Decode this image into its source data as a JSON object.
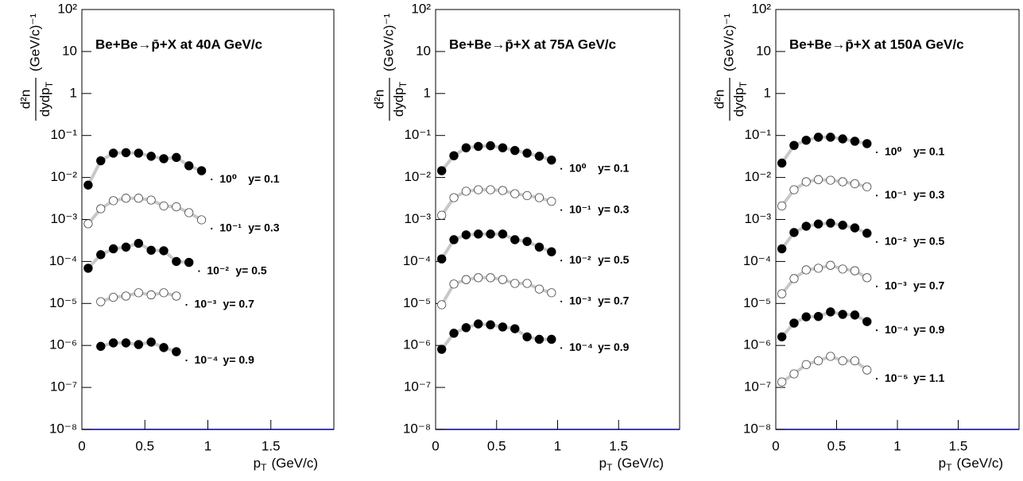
{
  "chart_data": [
    {
      "type": "line",
      "log_y": true,
      "title": "Be+Be→p̄+X at 40A GeV/c",
      "ylabel_numerator": "d²n",
      "ylabel_denominator": "dydp",
      "ylabel_denominator_sub": "T",
      "ylabel_unit": "(GeV/c)⁻¹",
      "xlabel": "p",
      "xlabel_sub": "T",
      "xlabel_unit": "(GeV/c)",
      "xlim": [
        0,
        2
      ],
      "ylim": [
        1e-08,
        100
      ],
      "xticks": [
        0,
        0.5,
        1,
        1.5
      ],
      "yticks": [
        {
          "value": 1e-08,
          "label": "10⁻⁸"
        },
        {
          "value": 1e-07,
          "label": "10⁻⁷"
        },
        {
          "value": 1e-06,
          "label": "10⁻⁶"
        },
        {
          "value": 1e-05,
          "label": "10⁻⁵"
        },
        {
          "value": 0.0001,
          "label": "10⁻⁴"
        },
        {
          "value": 0.001,
          "label": "10⁻³"
        },
        {
          "value": 0.01,
          "label": "10⁻²"
        },
        {
          "value": 0.1,
          "label": "10⁻¹"
        },
        1,
        10,
        {
          "value": 100,
          "label": "10²"
        }
      ],
      "series": [
        {
          "name": "y= 0.1",
          "scale_label": "10⁰",
          "marker": "filled",
          "color": "#000000",
          "x": [
            0.05,
            0.15,
            0.25,
            0.35,
            0.45,
            0.55,
            0.65,
            0.75,
            0.85,
            0.95
          ],
          "values": [
            0.0066,
            0.025,
            0.038,
            0.039,
            0.038,
            0.032,
            0.028,
            0.03,
            0.019,
            0.0145
          ]
        },
        {
          "name": "y= 0.3",
          "scale_label": "10⁻¹",
          "marker": "open",
          "color": "#000000",
          "x": [
            0.05,
            0.15,
            0.25,
            0.35,
            0.45,
            0.55,
            0.65,
            0.75,
            0.85,
            0.95
          ],
          "values": [
            0.00079,
            0.0018,
            0.0028,
            0.0032,
            0.0032,
            0.0029,
            0.0021,
            0.002,
            0.00145,
            0.00098
          ]
        },
        {
          "name": "y= 0.5",
          "scale_label": "10⁻²",
          "marker": "filled",
          "color": "#000000",
          "x": [
            0.05,
            0.15,
            0.25,
            0.35,
            0.45,
            0.55,
            0.65,
            0.75,
            0.85
          ],
          "values": [
            6.9e-05,
            0.000145,
            0.0002,
            0.00022,
            0.00027,
            0.000185,
            0.00018,
            0.0001,
            9.5e-05
          ]
        },
        {
          "name": "y= 0.7",
          "scale_label": "10⁻³",
          "marker": "open",
          "color": "#000000",
          "x": [
            0.15,
            0.25,
            0.35,
            0.45,
            0.55,
            0.65,
            0.75
          ],
          "values": [
            1.1e-05,
            1.4e-05,
            1.5e-05,
            1.8e-05,
            1.6e-05,
            1.8e-05,
            1.5e-05
          ]
        },
        {
          "name": "y= 0.9",
          "scale_label": "10⁻⁴",
          "marker": "filled",
          "color": "#000000",
          "x": [
            0.15,
            0.25,
            0.35,
            0.45,
            0.55,
            0.65,
            0.75
          ],
          "values": [
            9.5e-07,
            1.15e-06,
            1.15e-06,
            1.05e-06,
            1.2e-06,
            8.9e-07,
            7.1e-07
          ]
        }
      ]
    },
    {
      "type": "line",
      "log_y": true,
      "title": "Be+Be→p̄+X at 75A GeV/c",
      "ylabel_numerator": "d²n",
      "ylabel_denominator": "dydp",
      "ylabel_denominator_sub": "T",
      "ylabel_unit": "(GeV/c)⁻¹",
      "xlabel": "p",
      "xlabel_sub": "T",
      "xlabel_unit": "(GeV/c)",
      "xlim": [
        0,
        2
      ],
      "ylim": [
        1e-08,
        100
      ],
      "xticks": [
        0,
        0.5,
        1,
        1.5
      ],
      "yticks": [
        {
          "value": 1e-08,
          "label": "10⁻⁸"
        },
        {
          "value": 1e-07,
          "label": "10⁻⁷"
        },
        {
          "value": 1e-06,
          "label": "10⁻⁶"
        },
        {
          "value": 1e-05,
          "label": "10⁻⁵"
        },
        {
          "value": 0.0001,
          "label": "10⁻⁴"
        },
        {
          "value": 0.001,
          "label": "10⁻³"
        },
        {
          "value": 0.01,
          "label": "10⁻²"
        },
        {
          "value": 0.1,
          "label": "10⁻¹"
        },
        1,
        10,
        {
          "value": 100,
          "label": "10²"
        }
      ],
      "series": [
        {
          "name": "y= 0.1",
          "scale_label": "10⁰",
          "marker": "filled",
          "color": "#000000",
          "x": [
            0.05,
            0.15,
            0.25,
            0.35,
            0.45,
            0.55,
            0.65,
            0.75,
            0.85,
            0.95
          ],
          "values": [
            0.0145,
            0.033,
            0.051,
            0.055,
            0.057,
            0.051,
            0.044,
            0.038,
            0.032,
            0.026
          ]
        },
        {
          "name": "y= 0.3",
          "scale_label": "10⁻¹",
          "marker": "open",
          "color": "#000000",
          "x": [
            0.05,
            0.15,
            0.25,
            0.35,
            0.45,
            0.55,
            0.65,
            0.75,
            0.85,
            0.95
          ],
          "values": [
            0.00126,
            0.0033,
            0.0047,
            0.0051,
            0.0051,
            0.0049,
            0.0041,
            0.0037,
            0.0033,
            0.0027
          ]
        },
        {
          "name": "y= 0.5",
          "scale_label": "10⁻²",
          "marker": "filled",
          "color": "#000000",
          "x": [
            0.05,
            0.15,
            0.25,
            0.35,
            0.45,
            0.55,
            0.65,
            0.75,
            0.85,
            0.95
          ],
          "values": [
            0.000115,
            0.00033,
            0.00043,
            0.00045,
            0.00045,
            0.00045,
            0.00033,
            0.0003,
            0.00022,
            0.00017
          ]
        },
        {
          "name": "y= 0.7",
          "scale_label": "10⁻³",
          "marker": "open",
          "color": "#000000",
          "x": [
            0.05,
            0.15,
            0.25,
            0.35,
            0.45,
            0.55,
            0.65,
            0.75,
            0.85,
            0.95
          ],
          "values": [
            9.3e-06,
            2.9e-05,
            3.7e-05,
            4.1e-05,
            4.1e-05,
            3.7e-05,
            3e-05,
            3e-05,
            2.2e-05,
            1.8e-05
          ]
        },
        {
          "name": "y= 0.9",
          "scale_label": "10⁻⁴",
          "marker": "filled",
          "color": "#000000",
          "x": [
            0.05,
            0.15,
            0.25,
            0.35,
            0.45,
            0.55,
            0.65,
            0.75,
            0.85,
            0.95
          ],
          "values": [
            8.1e-07,
            1.95e-06,
            2.65e-06,
            3.25e-06,
            3.1e-06,
            2.75e-06,
            2.5e-06,
            1.6e-06,
            1.4e-06,
            1.4e-06
          ]
        }
      ]
    },
    {
      "type": "line",
      "log_y": true,
      "title": "Be+Be→p̄+X at 150A GeV/c",
      "ylabel_numerator": "d²n",
      "ylabel_denominator": "dydp",
      "ylabel_denominator_sub": "T",
      "ylabel_unit": "(GeV/c)⁻¹",
      "xlabel": "p",
      "xlabel_sub": "T",
      "xlabel_unit": "(GeV/c)",
      "xlim": [
        0,
        2
      ],
      "ylim": [
        1e-08,
        100
      ],
      "xticks": [
        0,
        0.5,
        1,
        1.5
      ],
      "yticks": [
        {
          "value": 1e-08,
          "label": "10⁻⁸"
        },
        {
          "value": 1e-07,
          "label": "10⁻⁷"
        },
        {
          "value": 1e-06,
          "label": "10⁻⁶"
        },
        {
          "value": 1e-05,
          "label": "10⁻⁵"
        },
        {
          "value": 0.0001,
          "label": "10⁻⁴"
        },
        {
          "value": 0.001,
          "label": "10⁻³"
        },
        {
          "value": 0.01,
          "label": "10⁻²"
        },
        {
          "value": 0.1,
          "label": "10⁻¹"
        },
        1,
        10,
        {
          "value": 100,
          "label": "10²"
        }
      ],
      "series": [
        {
          "name": "y= 0.1",
          "scale_label": "10⁰",
          "marker": "filled",
          "color": "#000000",
          "x": [
            0.05,
            0.15,
            0.25,
            0.35,
            0.45,
            0.55,
            0.65,
            0.75
          ],
          "values": [
            0.022,
            0.058,
            0.077,
            0.091,
            0.091,
            0.083,
            0.073,
            0.064
          ]
        },
        {
          "name": "y= 0.3",
          "scale_label": "10⁻¹",
          "marker": "open",
          "color": "#000000",
          "x": [
            0.05,
            0.15,
            0.25,
            0.35,
            0.45,
            0.55,
            0.65,
            0.75
          ],
          "values": [
            0.0021,
            0.0051,
            0.0079,
            0.0089,
            0.0086,
            0.0079,
            0.0071,
            0.006
          ]
        },
        {
          "name": "y= 0.5",
          "scale_label": "10⁻²",
          "marker": "filled",
          "color": "#000000",
          "x": [
            0.05,
            0.15,
            0.25,
            0.35,
            0.45,
            0.55,
            0.65,
            0.75
          ],
          "values": [
            0.0002,
            0.00049,
            0.00069,
            0.00078,
            0.00082,
            0.00073,
            0.00063,
            0.00047
          ]
        },
        {
          "name": "y= 0.7",
          "scale_label": "10⁻³",
          "marker": "open",
          "color": "#000000",
          "x": [
            0.05,
            0.15,
            0.25,
            0.35,
            0.45,
            0.55,
            0.65,
            0.75
          ],
          "values": [
            1.7e-05,
            3.9e-05,
            6.3e-05,
            6.9e-05,
            8.1e-05,
            6.6e-05,
            6e-05,
            4.1e-05
          ]
        },
        {
          "name": "y= 0.9",
          "scale_label": "10⁻⁴",
          "marker": "filled",
          "color": "#000000",
          "x": [
            0.05,
            0.15,
            0.25,
            0.35,
            0.45,
            0.55,
            0.65,
            0.75
          ],
          "values": [
            1.6e-06,
            3.4e-06,
            4.8e-06,
            4.9e-06,
            6.3e-06,
            5.5e-06,
            5.3e-06,
            3.7e-06
          ]
        },
        {
          "name": "y= 1.1",
          "scale_label": "10⁻⁵",
          "marker": "open",
          "color": "#000000",
          "x": [
            0.05,
            0.15,
            0.25,
            0.35,
            0.45,
            0.55,
            0.65,
            0.75
          ],
          "values": [
            1.35e-07,
            2.1e-07,
            3.5e-07,
            4.3e-07,
            5.5e-07,
            4.3e-07,
            4.3e-07,
            2.6e-07
          ]
        }
      ]
    }
  ]
}
